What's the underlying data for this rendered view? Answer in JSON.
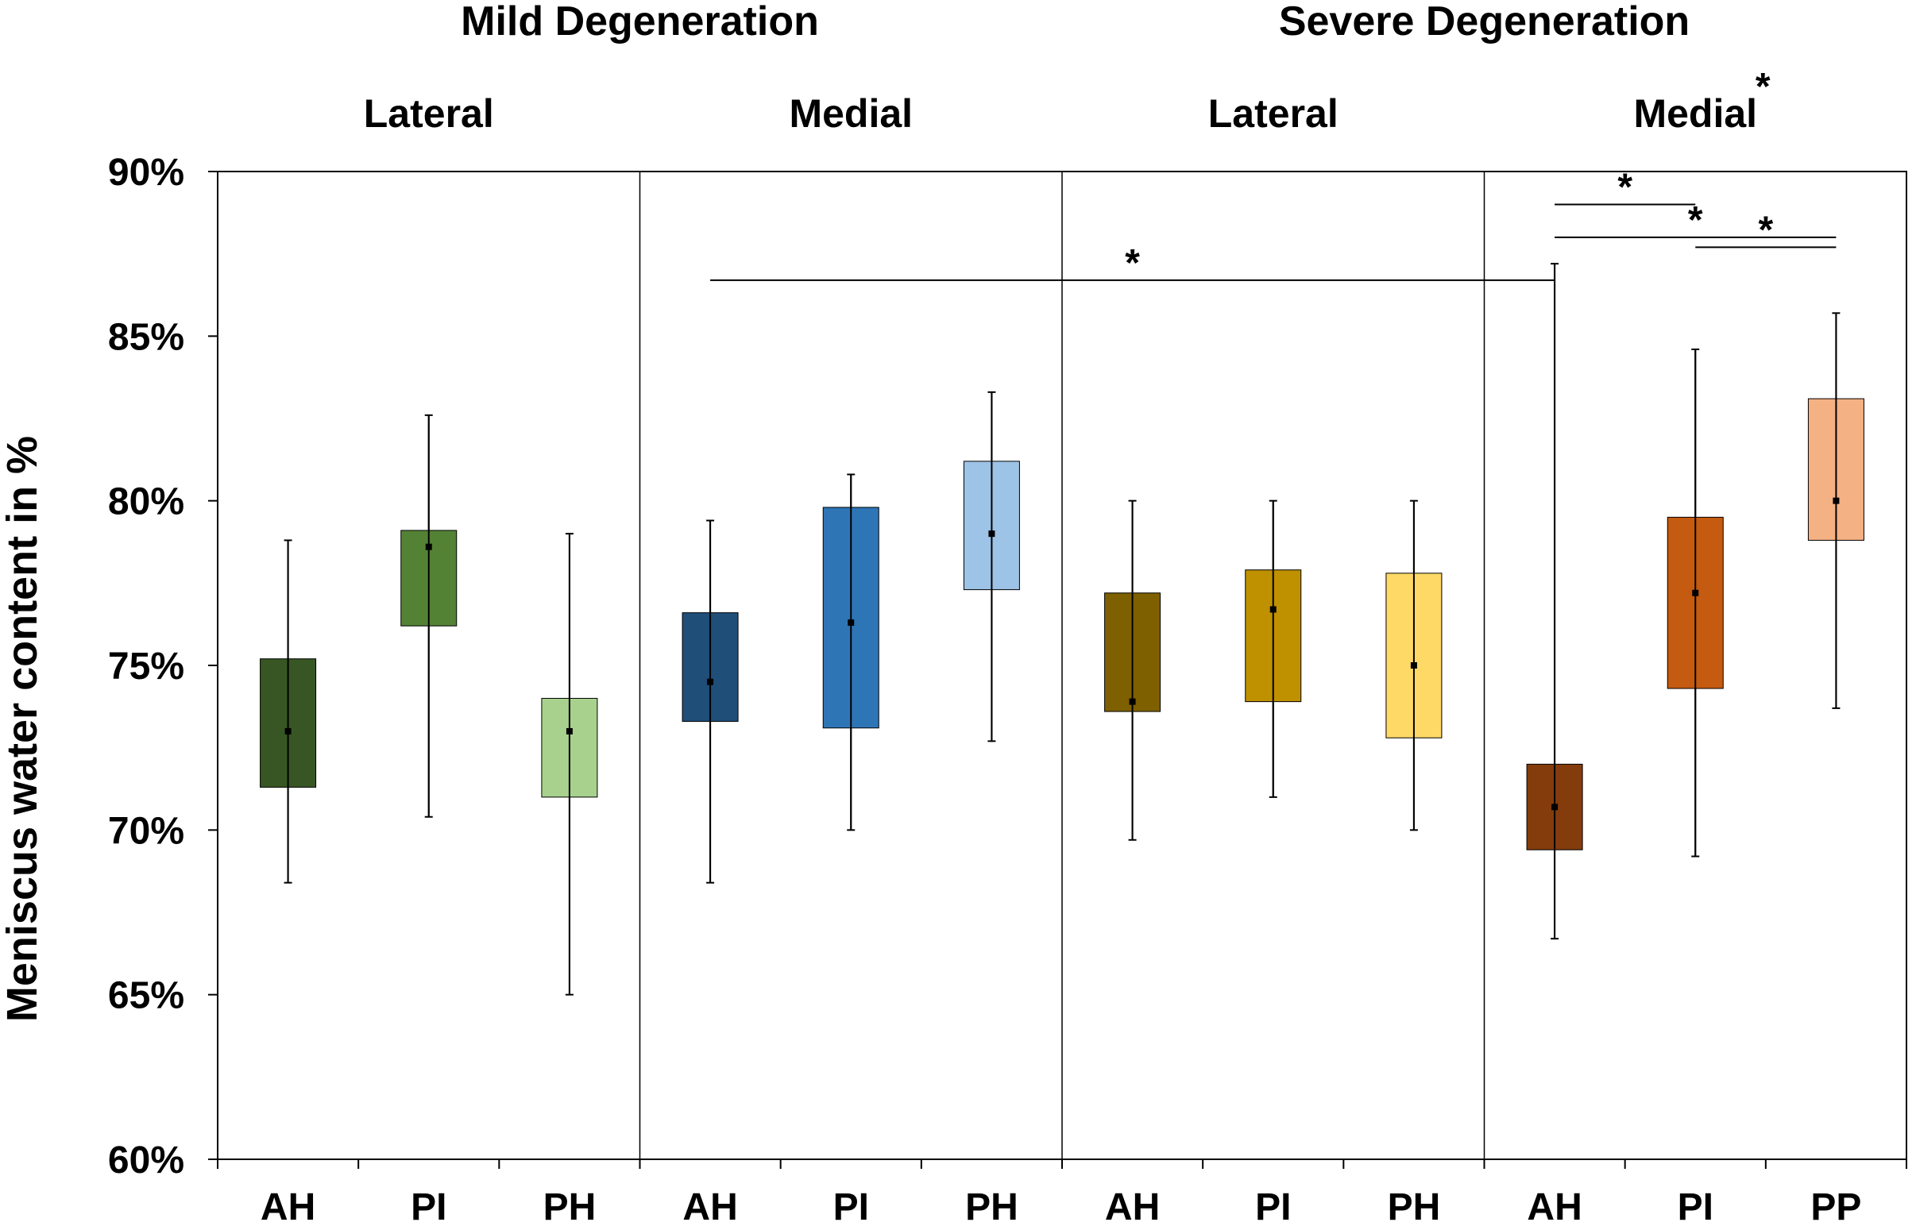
{
  "chart_data": {
    "type": "box",
    "ylabel": "Meniscus water content in %",
    "ylim": [
      60,
      90
    ],
    "yticks": [
      "60%",
      "65%",
      "70%",
      "75%",
      "80%",
      "85%",
      "90%"
    ],
    "groups": [
      {
        "degeneration": "Mild Degeneration",
        "side": "Lateral",
        "side_star": ""
      },
      {
        "degeneration": "Mild Degeneration",
        "side": "Medial",
        "side_star": ""
      },
      {
        "degeneration": "Severe Degeneration",
        "side": "Lateral",
        "side_star": ""
      },
      {
        "degeneration": "Severe Degeneration",
        "side": "Medial",
        "side_star": "*"
      }
    ],
    "degeneration_headers": [
      "Mild Degeneration",
      "Severe Degeneration"
    ],
    "boxes": [
      {
        "group": 0,
        "label": "AH",
        "color": "#375623",
        "q1": 71.3,
        "q3": 75.2,
        "median": 73.0,
        "whisker_low": 68.4,
        "whisker_high": 78.8
      },
      {
        "group": 0,
        "label": "PI",
        "color": "#548235",
        "q1": 76.2,
        "q3": 79.1,
        "median": 78.6,
        "whisker_low": 70.4,
        "whisker_high": 82.6
      },
      {
        "group": 0,
        "label": "PH",
        "color": "#a9d18e",
        "q1": 71.0,
        "q3": 74.0,
        "median": 73.0,
        "whisker_low": 65.0,
        "whisker_high": 79.0
      },
      {
        "group": 1,
        "label": "AH",
        "color": "#1f4e79",
        "q1": 73.3,
        "q3": 76.6,
        "median": 74.5,
        "whisker_low": 68.4,
        "whisker_high": 79.4
      },
      {
        "group": 1,
        "label": "PI",
        "color": "#2e75b6",
        "q1": 73.1,
        "q3": 79.8,
        "median": 76.3,
        "whisker_low": 70.0,
        "whisker_high": 80.8
      },
      {
        "group": 1,
        "label": "PH",
        "color": "#9dc3e6",
        "q1": 77.3,
        "q3": 81.2,
        "median": 79.0,
        "whisker_low": 72.7,
        "whisker_high": 83.3
      },
      {
        "group": 2,
        "label": "AH",
        "color": "#7f6000",
        "q1": 73.6,
        "q3": 77.2,
        "median": 73.9,
        "whisker_low": 69.7,
        "whisker_high": 80.0
      },
      {
        "group": 2,
        "label": "PI",
        "color": "#bf9000",
        "q1": 73.9,
        "q3": 77.9,
        "median": 76.7,
        "whisker_low": 71.0,
        "whisker_high": 80.0
      },
      {
        "group": 2,
        "label": "PH",
        "color": "#ffd966",
        "q1": 72.8,
        "q3": 77.8,
        "median": 75.0,
        "whisker_low": 70.0,
        "whisker_high": 80.0
      },
      {
        "group": 3,
        "label": "AH",
        "color": "#843c0c",
        "q1": 69.4,
        "q3": 72.0,
        "median": 70.7,
        "whisker_low": 66.7,
        "whisker_high": 87.2
      },
      {
        "group": 3,
        "label": "PI",
        "color": "#c55a11",
        "q1": 74.3,
        "q3": 79.5,
        "median": 77.2,
        "whisker_low": 69.2,
        "whisker_high": 84.6
      },
      {
        "group": 3,
        "label": "PP",
        "color": "#f4b183",
        "q1": 78.8,
        "q3": 83.1,
        "median": 80.0,
        "whisker_low": 73.7,
        "whisker_high": 85.7
      }
    ],
    "significance": [
      {
        "from_box": 3,
        "to_box": 9,
        "y": 86.7,
        "label": "*"
      },
      {
        "from_box": 9,
        "to_box": 10,
        "y": 89.0,
        "label": "*"
      },
      {
        "from_box": 9,
        "to_box": 11,
        "y": 88.0,
        "label": "*"
      },
      {
        "from_box": 10,
        "to_box": 11,
        "y": 87.7,
        "label": "*"
      }
    ]
  }
}
